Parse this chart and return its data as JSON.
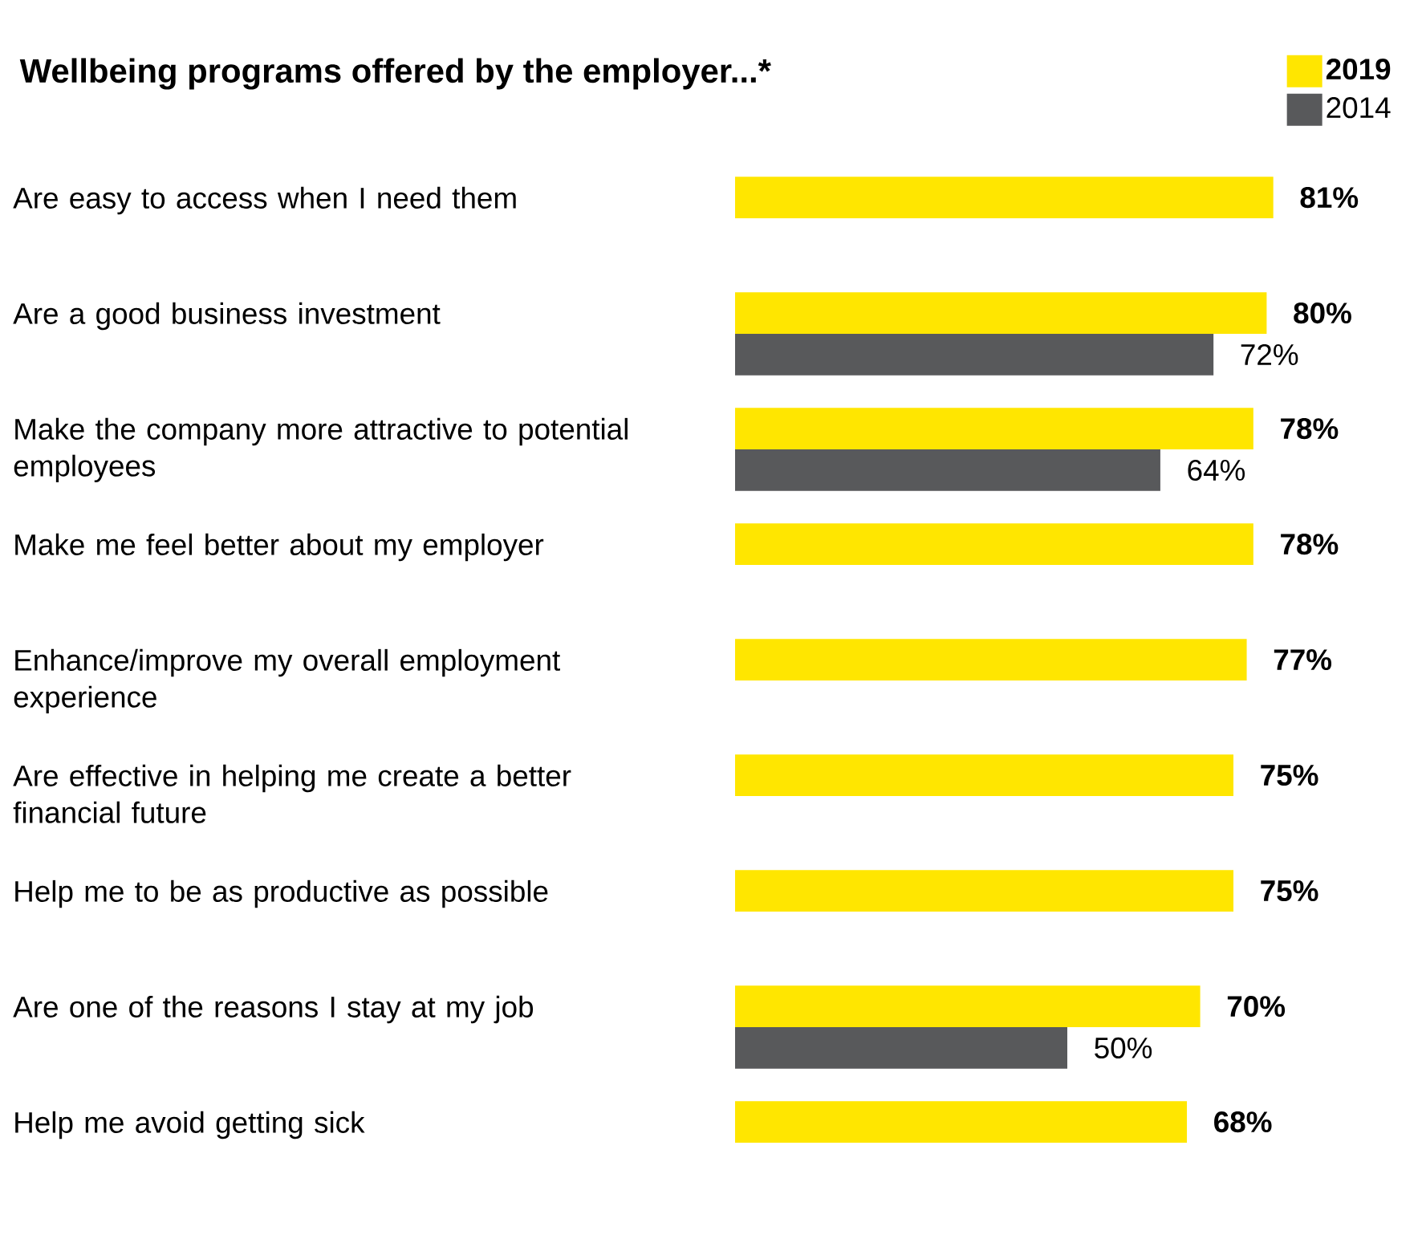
{
  "chart_data": {
    "type": "bar",
    "orientation": "horizontal",
    "title": "Wellbeing programs offered by the employer...*",
    "categories": [
      "Are easy to access when I need them",
      "Are a good business investment",
      "Make the company more attractive to potential employees",
      "Make me feel better about my employer",
      "Enhance/improve my overall employment experience",
      "Are effective in helping me create a better financial future",
      "Help me to be as productive as possible",
      "Are one of the reasons I stay at my job",
      "Help me avoid getting sick"
    ],
    "series": [
      {
        "name": "2019",
        "color": "#ffe600",
        "values": [
          81,
          80,
          78,
          78,
          77,
          75,
          75,
          70,
          68
        ],
        "value_labels": [
          "81%",
          "80%",
          "78%",
          "78%",
          "77%",
          "75%",
          "75%",
          "70%",
          "68%"
        ]
      },
      {
        "name": "2014",
        "color": "#58595b",
        "values": [
          null,
          72,
          64,
          null,
          null,
          null,
          null,
          50,
          null
        ],
        "value_labels": [
          null,
          "72%",
          "64%",
          null,
          null,
          null,
          null,
          "50%",
          null
        ]
      }
    ],
    "legend": "top right"
  }
}
